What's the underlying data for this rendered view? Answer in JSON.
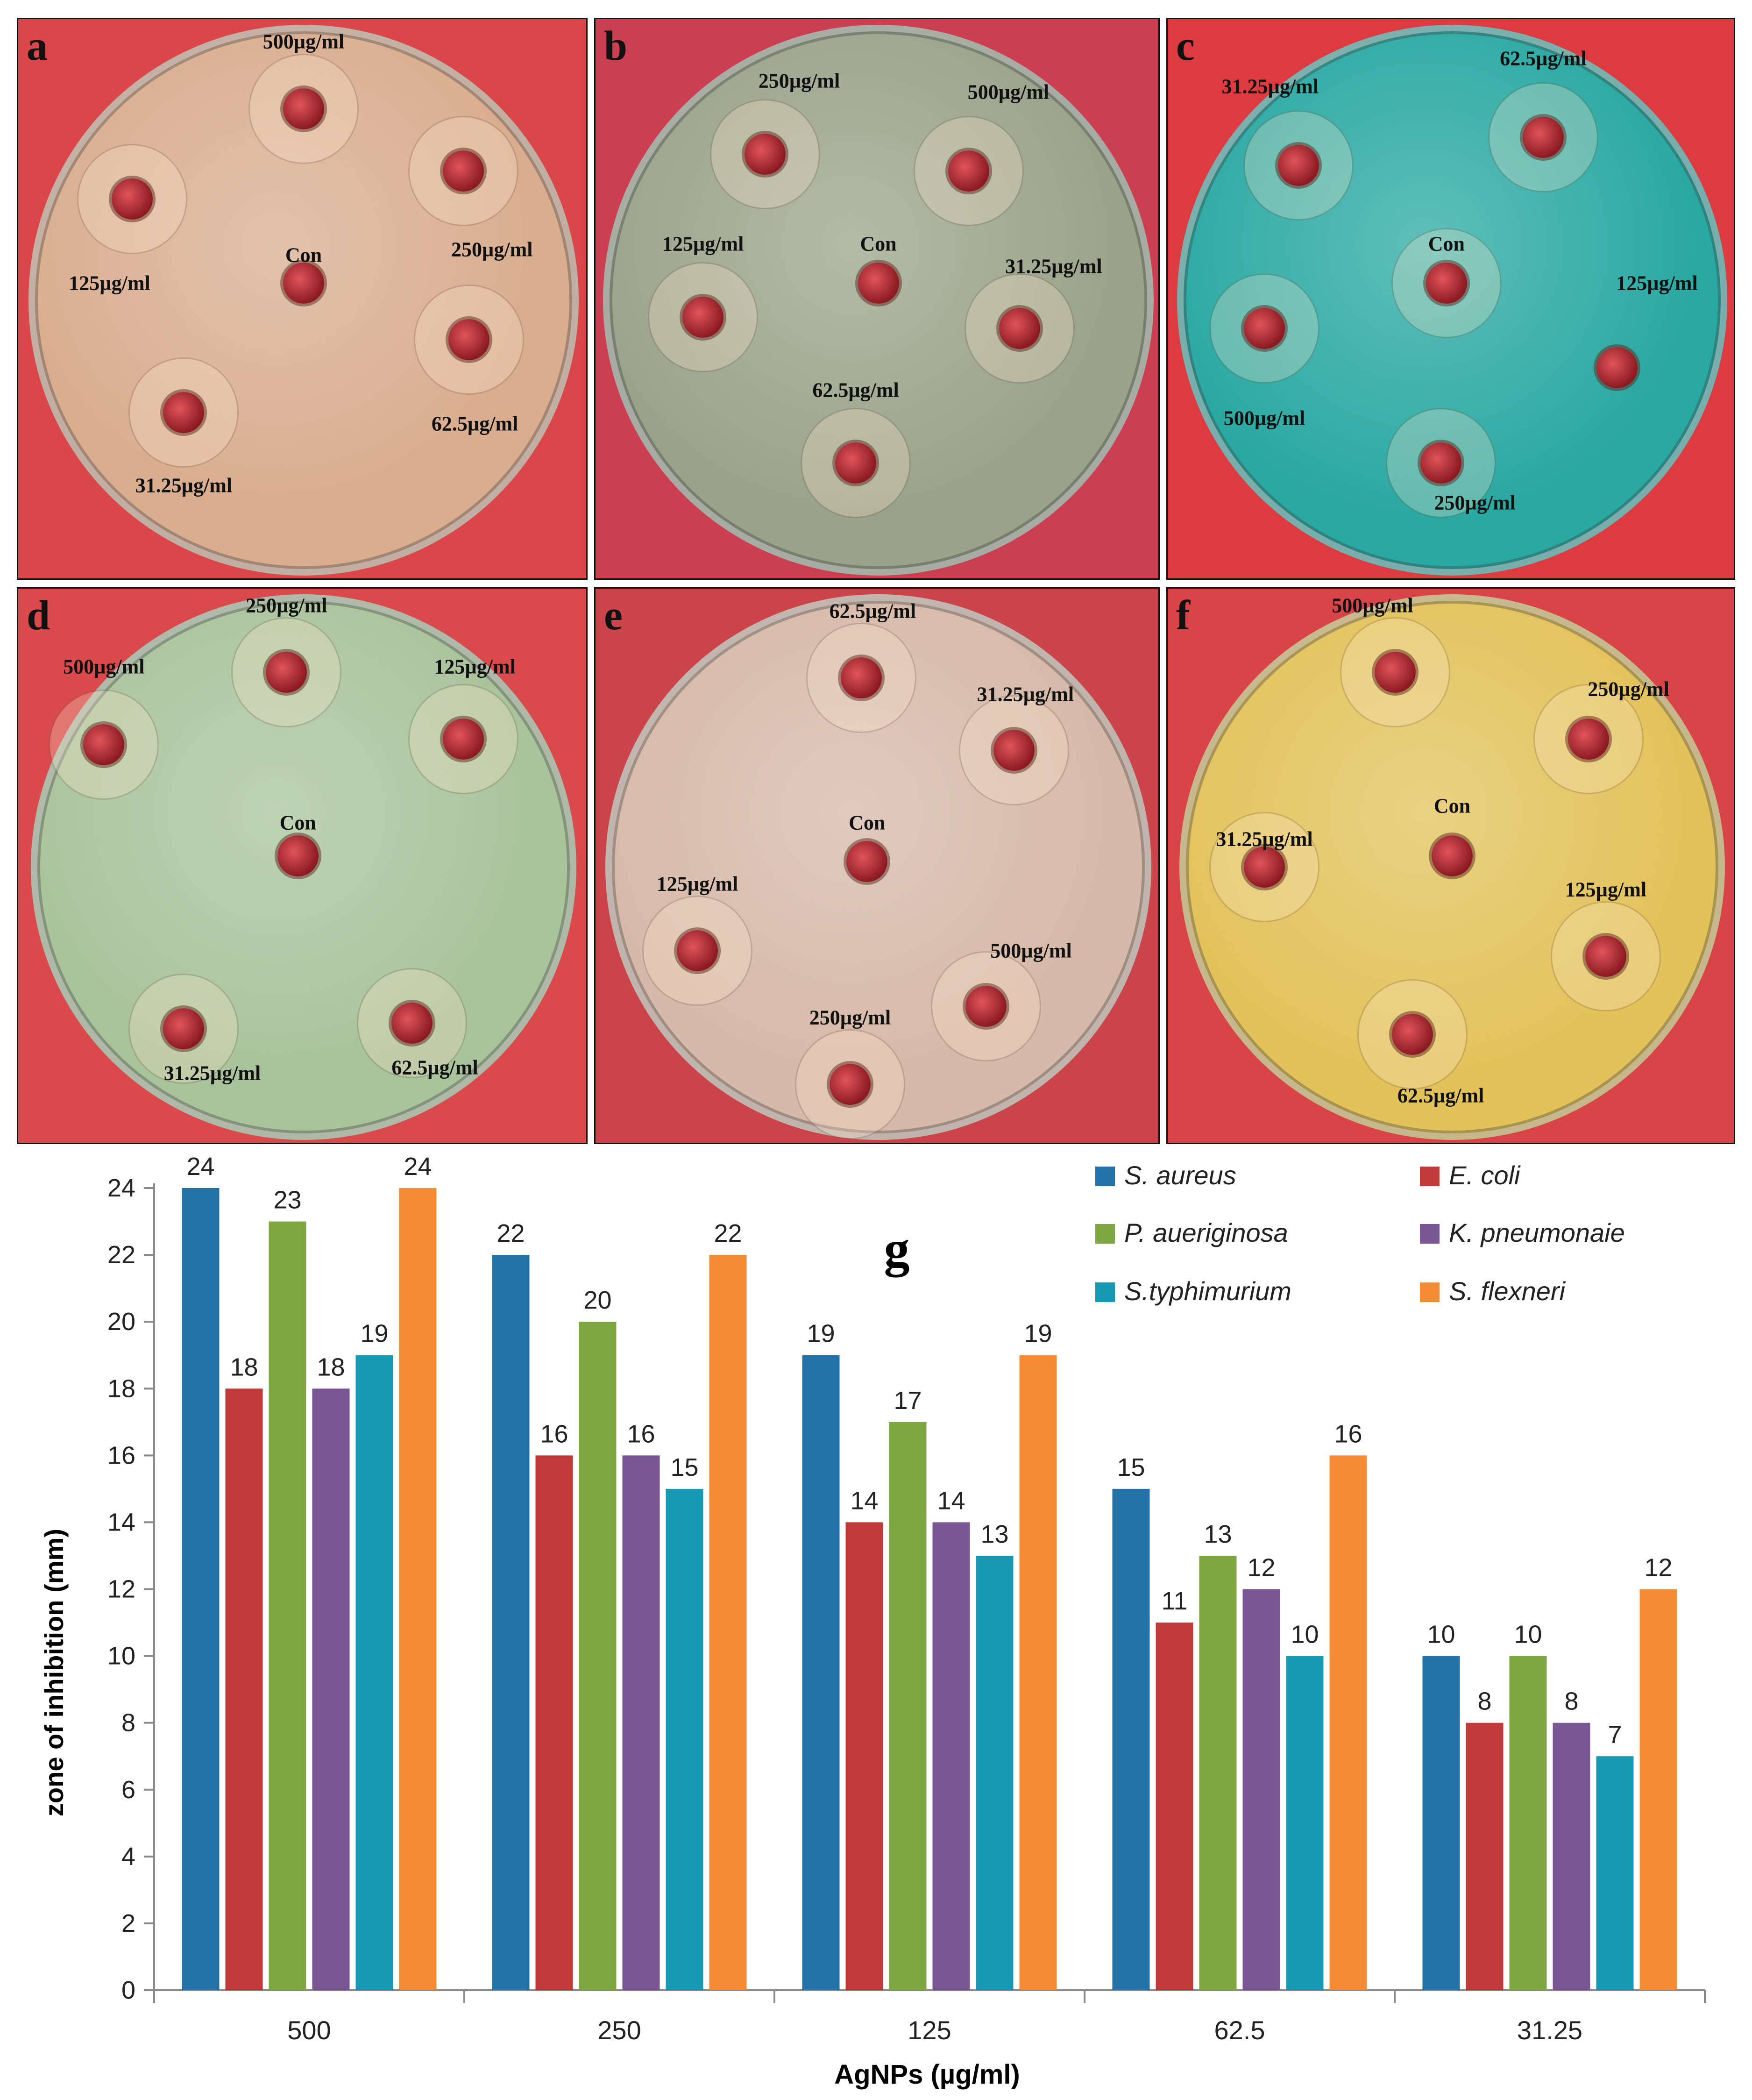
{
  "plates": [
    {
      "letter": "a",
      "bg": "#d9474a",
      "agar": "#d9ad8f",
      "labels": [
        "500µg/ml",
        "250µg/ml",
        "125µg/ml",
        "Con",
        "62.5µg/ml",
        "31.25µg/ml"
      ]
    },
    {
      "letter": "b",
      "bg": "#cc3f52",
      "agar": "#9aa38a",
      "labels": [
        "250µg/ml",
        "500µg/ml",
        "125µg/ml",
        "Con",
        "31.25µg/ml",
        "62.5µg/ml"
      ]
    },
    {
      "letter": "c",
      "bg": "#dc3b40",
      "agar": "#2aa9a2",
      "labels": [
        "31.25µg/ml",
        "62.5µg/ml",
        "Con",
        "125µg/ml",
        "500µg/ml",
        "250µg/ml"
      ]
    },
    {
      "letter": "d",
      "bg": "#d94a4c",
      "agar": "#a9c39c",
      "labels": [
        "250µg/ml",
        "125µg/ml",
        "500µg/ml",
        "Con",
        "31.25µg/ml",
        "62.5µg/ml"
      ]
    },
    {
      "letter": "e",
      "bg": "#c9454a",
      "agar": "#d6b9a8",
      "labels": [
        "62.5µg/ml",
        "31.25µg/ml",
        "125µg/ml",
        "Con",
        "500µg/ml",
        "250µg/ml"
      ]
    },
    {
      "letter": "f",
      "bg": "#d84448",
      "agar": "#e2c25a",
      "labels": [
        "500µg/ml",
        "250µg/ml",
        "31.25µg/ml",
        "Con",
        "125µg/ml",
        "62.5µg/ml"
      ]
    }
  ],
  "chart_data": {
    "type": "bar",
    "panel_label": "g",
    "categories": [
      "500",
      "250",
      "125",
      "62.5",
      "31.25"
    ],
    "series": [
      {
        "name": "S. aureus",
        "color": "#2471a9",
        "values": [
          24,
          22,
          19,
          15,
          10
        ]
      },
      {
        "name": "E. coli",
        "color": "#c0393b",
        "values": [
          18,
          16,
          14,
          11,
          8
        ]
      },
      {
        "name": "P. aueriginosa",
        "color": "#7ea743",
        "values": [
          23,
          20,
          17,
          13,
          10
        ]
      },
      {
        "name": "K. pneumonaie",
        "color": "#7a5593",
        "values": [
          18,
          16,
          14,
          12,
          8
        ]
      },
      {
        "name": "S.typhimurium",
        "color": "#169ab4",
        "values": [
          19,
          15,
          13,
          10,
          7
        ]
      },
      {
        "name": "S. flexneri",
        "color": "#f38c35",
        "values": [
          24,
          22,
          19,
          16,
          12
        ]
      }
    ],
    "xlabel": "AgNPs (µg/ml)",
    "ylabel": "zone of inhibition (mm)",
    "ylim": [
      0,
      24
    ],
    "yticks": [
      0,
      2,
      4,
      6,
      8,
      10,
      12,
      14,
      16,
      18,
      20,
      22,
      24
    ],
    "grid": false,
    "legend": "top-right"
  }
}
